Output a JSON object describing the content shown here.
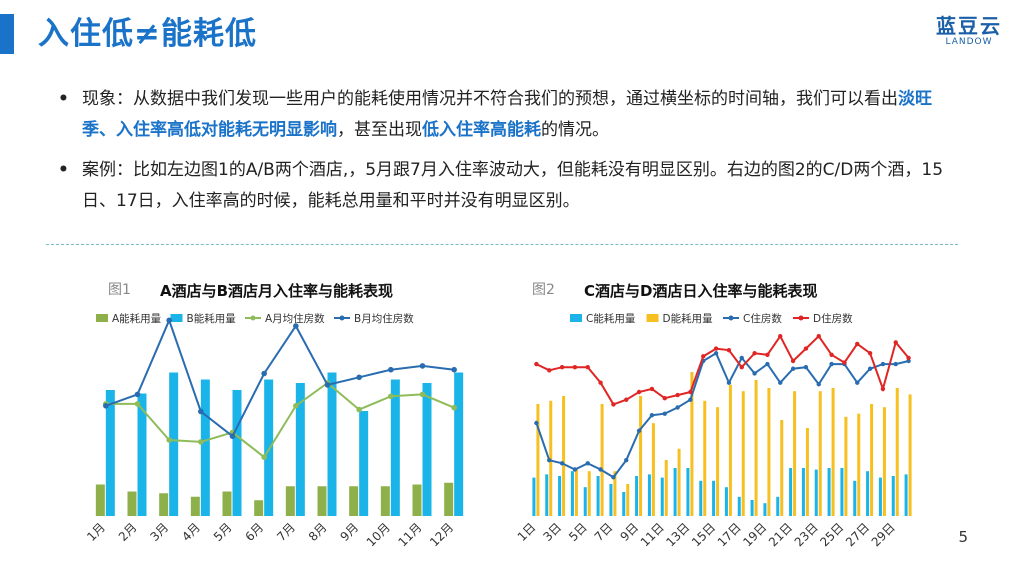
{
  "slide": {
    "title": "入住低≠能耗低",
    "logo_cn": "蓝豆云",
    "logo_en": "LANDOW",
    "page_number": "5"
  },
  "bullets": [
    {
      "parts": [
        {
          "text": "现象：从数据中我们发现一些用户的能耗使用情况并不符合我们的预想，通过横坐标的时间轴，我们可以看出",
          "hl": false
        },
        {
          "text": "淡旺季、入住率高低对能耗无明显影响",
          "hl": true
        },
        {
          "text": "，甚至出现",
          "hl": false
        },
        {
          "text": "低入住率高能耗",
          "hl": true
        },
        {
          "text": "的情况。",
          "hl": false
        }
      ]
    },
    {
      "parts": [
        {
          "text": "案例：比如左边图1的A/B两个酒店,，5月跟7月入住率波动大，但能耗没有明显区别。右边的图2的C/D两个酒，15日、17日，入住率高的时候，能耗总用量和平时并没有明显区别。",
          "hl": false
        }
      ]
    }
  ],
  "chart_data": [
    {
      "type": "bar",
      "label": "图1",
      "title": "A酒店与B酒店月入住率与能耗表现",
      "categories": [
        "1月",
        "2月",
        "3月",
        "4月",
        "5月",
        "6月",
        "7月",
        "8月",
        "9月",
        "10月",
        "11月",
        "12月"
      ],
      "series": [
        {
          "name": "A能耗用量",
          "kind": "bar",
          "color": "#8db04a",
          "values": [
            18,
            14,
            13,
            11,
            14,
            9,
            17,
            17,
            17,
            17,
            18,
            19
          ]
        },
        {
          "name": "B能耗用量",
          "kind": "bar",
          "color": "#1ab4e8",
          "values": [
            72,
            70,
            82,
            78,
            72,
            78,
            76,
            82,
            60,
            78,
            76,
            82
          ]
        },
        {
          "name": "A月均住房数",
          "kind": "line",
          "color": "#8fbc5a",
          "values": [
            59,
            59,
            40,
            39,
            44,
            31,
            58,
            70,
            56,
            63,
            64,
            57
          ]
        },
        {
          "name": "B月均住房数",
          "kind": "line",
          "color": "#2a6cb0",
          "values": [
            58,
            64,
            103,
            55,
            42,
            75,
            100,
            69,
            73,
            77,
            79,
            77
          ]
        }
      ]
    },
    {
      "type": "bar",
      "label": "图2",
      "title": "C酒店与D酒店日入住率与能耗表现",
      "categories": [
        "1日",
        "2日",
        "3日",
        "4日",
        "5日",
        "6日",
        "7日",
        "8日",
        "9日",
        "10日",
        "11日",
        "12日",
        "13日",
        "14日",
        "15日",
        "16日",
        "17日",
        "18日",
        "19日",
        "20日",
        "21日",
        "22日",
        "23日",
        "24日",
        "25日",
        "26日",
        "27日",
        "28日",
        "29日",
        "30日"
      ],
      "tick_labels_shown": [
        "1日",
        "3日",
        "5日",
        "7日",
        "9日",
        "11日",
        "13日",
        "15日",
        "17日",
        "19日",
        "21日",
        "23日",
        "25日",
        "27日",
        "29日"
      ],
      "series": [
        {
          "name": "C能耗用量",
          "kind": "bar",
          "color": "#1ab4e8",
          "values": [
            24,
            26,
            25,
            28,
            18,
            25,
            20,
            15,
            25,
            26,
            24,
            30,
            30,
            22,
            22,
            18,
            12,
            10,
            8,
            12,
            30,
            30,
            29,
            30,
            30,
            22,
            28,
            24,
            25,
            26
          ]
        },
        {
          "name": "D能耗用量",
          "kind": "bar",
          "color": "#f5c020",
          "values": [
            70,
            72,
            75,
            30,
            28,
            70,
            28,
            20,
            75,
            58,
            35,
            42,
            90,
            72,
            68,
            82,
            78,
            85,
            80,
            60,
            78,
            55,
            78,
            80,
            62,
            64,
            70,
            68,
            80,
            76
          ]
        },
        {
          "name": "C住房数",
          "kind": "line",
          "color": "#2a6cb0",
          "values": [
            60,
            36,
            34,
            30,
            34,
            30,
            25,
            36,
            55,
            65,
            66,
            70,
            75,
            100,
            105,
            86,
            102,
            92,
            98,
            86,
            95,
            96,
            85,
            98,
            98,
            86,
            95,
            98,
            98,
            100
          ]
        },
        {
          "name": "D住房数",
          "kind": "line",
          "color": "#e02525",
          "values": [
            98,
            94,
            96,
            96,
            96,
            86,
            72,
            75,
            80,
            82,
            76,
            78,
            80,
            103,
            108,
            107,
            96,
            105,
            104,
            116,
            100,
            108,
            116,
            104,
            99,
            111,
            105,
            82,
            112,
            102
          ]
        }
      ]
    }
  ]
}
